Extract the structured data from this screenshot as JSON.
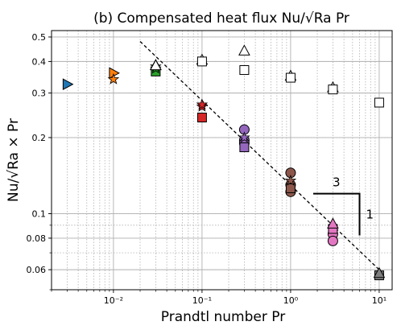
{
  "chart_data": {
    "type": "scatter",
    "title": "(b) Compensated heat flux Nu/√Ra Pr",
    "xlabel": "Prandtl number Pr",
    "ylabel": "Nu/√Ra × Pr",
    "x_scale": "log",
    "y_scale": "log",
    "xlim": [
      0.002,
      14
    ],
    "ylim": [
      0.05,
      0.53
    ],
    "grid": true,
    "x_ticks": [
      {
        "value": 0.01,
        "label": "10⁻²"
      },
      {
        "value": 0.1,
        "label": "10⁻¹"
      },
      {
        "value": 1,
        "label": "10⁰"
      },
      {
        "value": 10,
        "label": "10¹"
      }
    ],
    "y_ticks": [
      {
        "value": 0.06,
        "label": "0.06"
      },
      {
        "value": 0.08,
        "label": "0.08"
      },
      {
        "value": 0.1,
        "label": "0.1"
      },
      {
        "value": 0.2,
        "label": "0.2"
      },
      {
        "value": 0.3,
        "label": "0.3"
      },
      {
        "value": 0.4,
        "label": "0.4"
      },
      {
        "value": 0.5,
        "label": "0.5"
      }
    ],
    "series": [
      {
        "marker": "triangle-right",
        "color": "#1f77b4",
        "points": [
          {
            "x": 0.003,
            "y": 0.325
          }
        ]
      },
      {
        "marker": "triangle-right",
        "color": "#ff7f0e",
        "points": [
          {
            "x": 0.01,
            "y": 0.36
          }
        ]
      },
      {
        "marker": "star",
        "color": "#ff7f0e",
        "points": [
          {
            "x": 0.01,
            "y": 0.34
          }
        ]
      },
      {
        "marker": "square",
        "color": "#2ca02c",
        "points": [
          {
            "x": 0.03,
            "y": 0.365
          }
        ]
      },
      {
        "marker": "star",
        "color": "#2ca02c",
        "points": [
          {
            "x": 0.03,
            "y": 0.375
          },
          {
            "x": 0.03,
            "y": 0.382
          }
        ]
      },
      {
        "marker": "triangle-up",
        "color": "#2ca02c",
        "points": [
          {
            "x": 0.03,
            "y": 0.386
          }
        ]
      },
      {
        "marker": "square",
        "color": "#d62728",
        "points": [
          {
            "x": 0.1,
            "y": 0.24
          }
        ]
      },
      {
        "marker": "star",
        "color": "#d62728",
        "points": [
          {
            "x": 0.1,
            "y": 0.265
          },
          {
            "x": 0.1,
            "y": 0.27
          }
        ]
      },
      {
        "marker": "circle",
        "color": "#9467bd",
        "points": [
          {
            "x": 0.3,
            "y": 0.215
          },
          {
            "x": 0.3,
            "y": 0.195
          },
          {
            "x": 0.3,
            "y": 0.19
          }
        ]
      },
      {
        "marker": "square",
        "color": "#9467bd",
        "points": [
          {
            "x": 0.3,
            "y": 0.183
          }
        ]
      },
      {
        "marker": "star",
        "color": "#9467bd",
        "points": [
          {
            "x": 0.3,
            "y": 0.2
          }
        ]
      },
      {
        "marker": "circle",
        "color": "#8c564b",
        "points": [
          {
            "x": 1.0,
            "y": 0.145
          },
          {
            "x": 1.0,
            "y": 0.13
          },
          {
            "x": 1.0,
            "y": 0.122
          }
        ]
      },
      {
        "marker": "square",
        "color": "#8c564b",
        "points": [
          {
            "x": 1.0,
            "y": 0.126
          }
        ]
      },
      {
        "marker": "star",
        "color": "#8c564b",
        "points": [
          {
            "x": 1.0,
            "y": 0.135
          }
        ]
      },
      {
        "marker": "circle",
        "color": "#e377c2",
        "points": [
          {
            "x": 3.0,
            "y": 0.083
          },
          {
            "x": 3.0,
            "y": 0.078
          }
        ]
      },
      {
        "marker": "square",
        "color": "#e377c2",
        "points": [
          {
            "x": 3.0,
            "y": 0.087
          }
        ]
      },
      {
        "marker": "triangle-up",
        "color": "#e377c2",
        "points": [
          {
            "x": 3.0,
            "y": 0.091
          }
        ]
      },
      {
        "marker": "square",
        "color": "#7f7f7f",
        "points": [
          {
            "x": 10.0,
            "y": 0.057
          }
        ]
      },
      {
        "marker": "triangle-up",
        "color": "#7f7f7f",
        "points": [
          {
            "x": 10.0,
            "y": 0.058
          }
        ]
      },
      {
        "marker": "triangle-up",
        "color": "#ffffff",
        "points": [
          {
            "x": 0.03,
            "y": 0.385
          },
          {
            "x": 0.1,
            "y": 0.405
          },
          {
            "x": 0.3,
            "y": 0.44
          },
          {
            "x": 1.0,
            "y": 0.35
          },
          {
            "x": 3.0,
            "y": 0.315
          }
        ]
      },
      {
        "marker": "square",
        "color": "#ffffff",
        "points": [
          {
            "x": 0.1,
            "y": 0.4
          },
          {
            "x": 0.3,
            "y": 0.37
          },
          {
            "x": 1.0,
            "y": 0.345
          },
          {
            "x": 3.0,
            "y": 0.31
          },
          {
            "x": 10.0,
            "y": 0.275
          }
        ]
      }
    ],
    "reference_line": {
      "style": "dashed",
      "color": "#000000",
      "x": [
        0.02,
        10.0
      ],
      "y": [
        0.48,
        0.06
      ]
    },
    "slope_triangle": {
      "x_left": 1.8,
      "x_right": 6.0,
      "y_top": 0.12,
      "y_bottom": 0.082,
      "run_label": "3",
      "rise_label": "1"
    }
  }
}
